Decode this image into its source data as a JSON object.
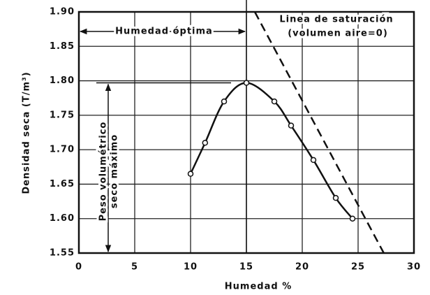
{
  "chart_data": {
    "type": "line",
    "xlabel": "Humedad   %",
    "ylabel": "Densidad seca  (T/m³)",
    "xlim": [
      0,
      30
    ],
    "xticks": [
      0,
      5,
      10,
      15,
      20,
      25,
      30
    ],
    "ylim": [
      1.55,
      1.9
    ],
    "yticks": [
      {
        "value": 1.55,
        "label": "1.55"
      },
      {
        "value": 1.6,
        "label": "1.60"
      },
      1.65,
      {
        "value": 1.7,
        "label": "1.70"
      },
      1.75,
      {
        "value": 1.8,
        "label": "1.80"
      },
      1.85,
      {
        "value": 1.9,
        "label": "1.90"
      }
    ],
    "grid": true,
    "series": [
      {
        "color": "#111111",
        "x": [
          10,
          11.3,
          13,
          15,
          17.5,
          19,
          21,
          23,
          24.5
        ],
        "values": [
          1.665,
          1.71,
          1.77,
          1.797,
          1.77,
          1.735,
          1.685,
          1.63,
          1.6
        ],
        "markers": true
      },
      {
        "color": "#111111",
        "x": [
          15.75,
          27.3
        ],
        "values": [
          1.9,
          1.55
        ],
        "dashed": true
      }
    ],
    "annotations": {
      "optimum": "Humedad óptima",
      "saturation": [
        "Linea de saturación",
        "(volumen aire=0)"
      ],
      "max_density": [
        "Peso volumétrico",
        "seco máximo"
      ]
    }
  }
}
